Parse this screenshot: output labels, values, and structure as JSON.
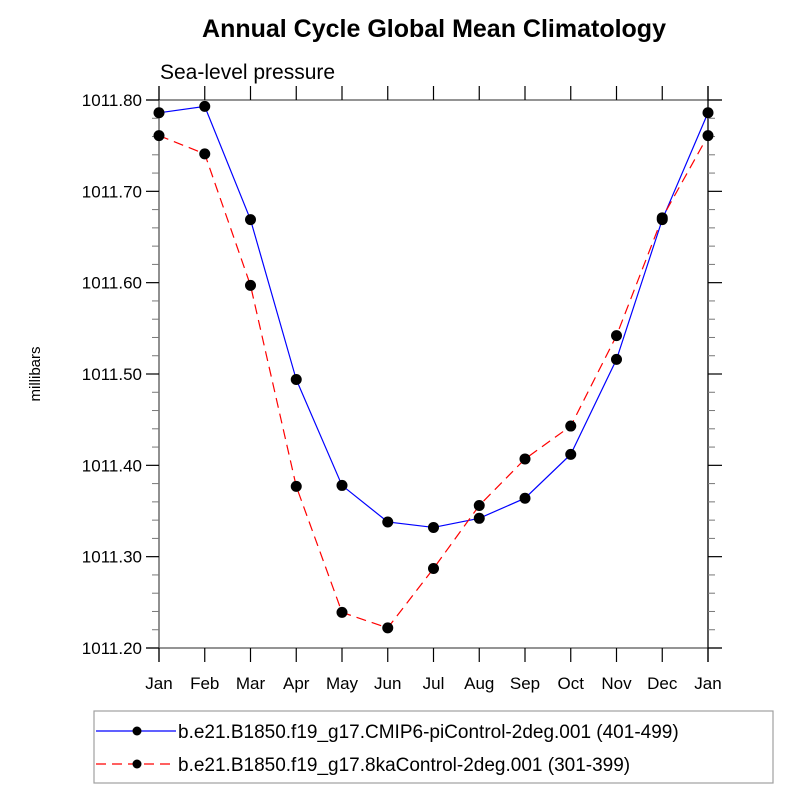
{
  "chart_data": {
    "type": "line",
    "title": "Annual Cycle Global Mean Climatology",
    "subtitle": "Sea-level pressure",
    "xlabel": "",
    "ylabel": "millibars",
    "categories": [
      "Jan",
      "Feb",
      "Mar",
      "Apr",
      "May",
      "Jun",
      "Jul",
      "Aug",
      "Sep",
      "Oct",
      "Nov",
      "Dec",
      "Jan"
    ],
    "ylim": [
      1011.2,
      1011.8
    ],
    "yticks": [
      1011.2,
      1011.3,
      1011.4,
      1011.5,
      1011.6,
      1011.7,
      1011.8
    ],
    "ytick_labels": [
      "1011.20",
      "1011.30",
      "1011.40",
      "1011.50",
      "1011.60",
      "1011.70",
      "1011.80"
    ],
    "y_minor_per_major": 4,
    "grid": false,
    "legend_position": "bottom",
    "series": [
      {
        "name": "b.e21.B1850.f19_g17.CMIP6-piControl-2deg.001 (401-499)",
        "color": "#0000ff",
        "line_style": "solid",
        "marker": "filled-circle",
        "marker_color": "#000000",
        "values": [
          1011.786,
          1011.793,
          1011.669,
          1011.494,
          1011.378,
          1011.338,
          1011.332,
          1011.342,
          1011.364,
          1011.412,
          1011.516,
          1011.669,
          1011.786
        ]
      },
      {
        "name": "b.e21.B1850.f19_g17.8kaControl-2deg.001 (301-399)",
        "color": "#ff0000",
        "line_style": "dashed",
        "marker": "filled-circle",
        "marker_color": "#000000",
        "values": [
          1011.761,
          1011.741,
          1011.597,
          1011.377,
          1011.239,
          1011.222,
          1011.287,
          1011.356,
          1011.407,
          1011.443,
          1011.542,
          1011.671,
          1011.761
        ]
      }
    ]
  }
}
